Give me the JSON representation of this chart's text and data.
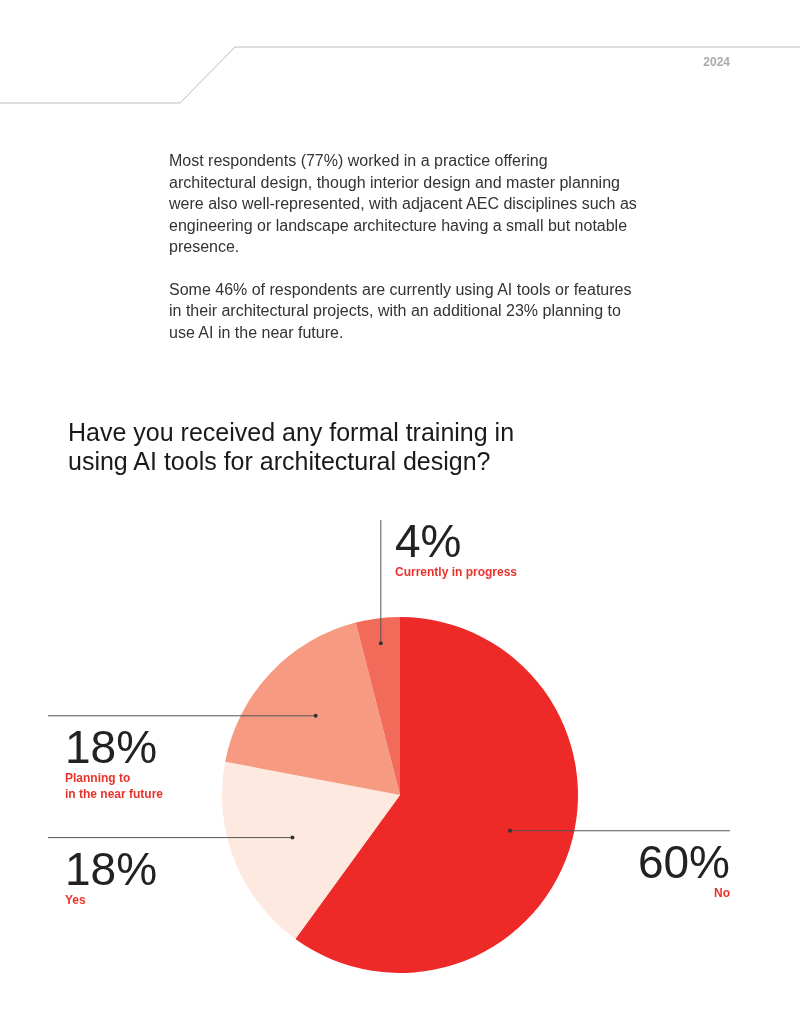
{
  "chart_data": {
    "type": "pie",
    "title": "Have you received any formal training in using AI tools for architectural design?",
    "categories": [
      "No",
      "Yes",
      "Planning to\nin the near future",
      "Currently in progress"
    ],
    "values": [
      60,
      18,
      18,
      4
    ],
    "colors": [
      "#ee2a28",
      "#fde9df",
      "#f79a82",
      "#f26b5a"
    ],
    "value_labels": [
      "60%",
      "18%",
      "18%",
      "4%"
    ],
    "annotations": [
      "2024",
      "Most respondents (77%) worked in a practice offering architectural design, though interior design and master planning were also well-represented, with adjacent AEC disciplines such as engineering or landscape architecture having a small but notable presence.",
      "Some 46% of respondents are currently using AI tools or features in their architectural projects, with an additional 23% planning to use AI in the near future."
    ]
  }
}
